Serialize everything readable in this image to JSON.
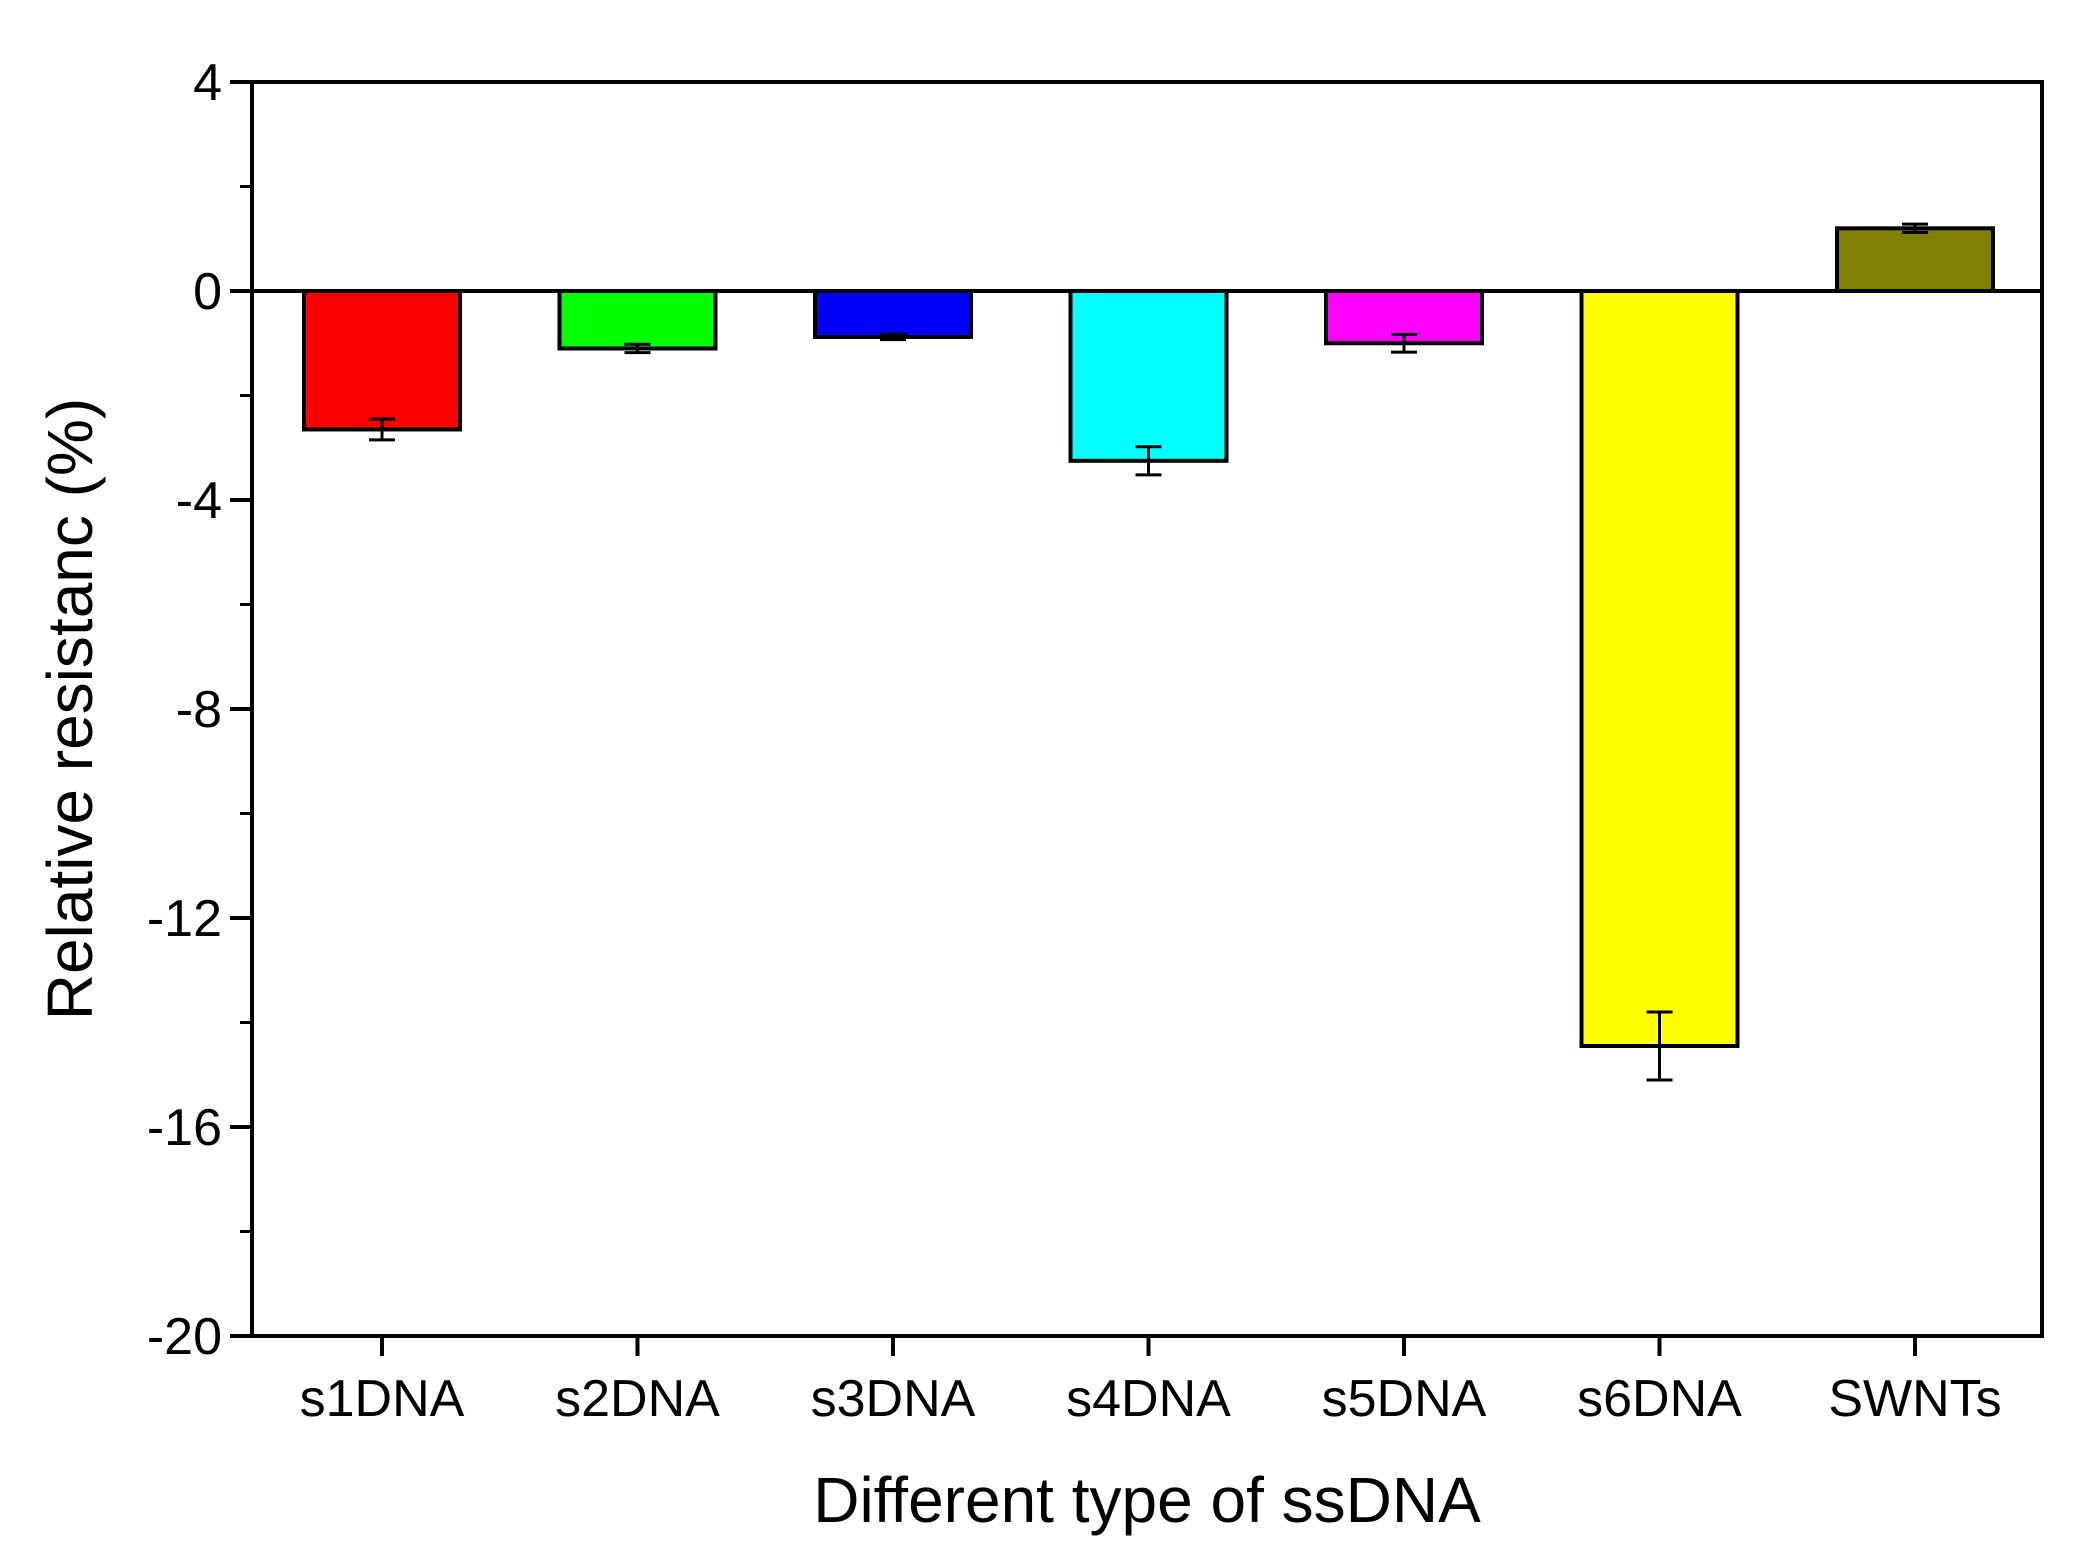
{
  "chart_data": {
    "type": "bar",
    "title": "",
    "xlabel": "Different type of ssDNA",
    "ylabel": "Relative resistanc (%)",
    "ylim": [
      -20,
      4
    ],
    "yticks": [
      4,
      0,
      -4,
      -8,
      -12,
      -16,
      -20
    ],
    "yticks_labels": [
      "4",
      "0",
      "-4",
      "-8",
      "-12",
      "-16",
      "-20"
    ],
    "categories": [
      "s1DNA",
      "s2DNA",
      "s3DNA",
      "s4DNA",
      "s5DNA",
      "s6DNA",
      "SWNTs"
    ],
    "values": [
      -2.65,
      -1.1,
      -0.88,
      -3.25,
      -1.0,
      -14.45,
      1.2
    ],
    "errors": [
      0.2,
      0.08,
      0.05,
      0.27,
      0.17,
      0.65,
      0.08
    ],
    "colors": [
      "#ff0000",
      "#00ff00",
      "#0000ff",
      "#00ffff",
      "#ff00ff",
      "#ffff00",
      "#808000"
    ],
    "grid": false,
    "legend": "none"
  }
}
